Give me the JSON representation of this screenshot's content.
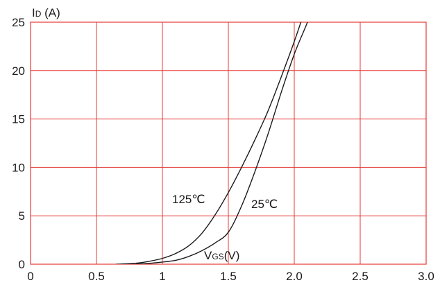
{
  "chart_data": {
    "type": "line",
    "title": "",
    "xlabel": "VGS(V)",
    "ylabel": "ID (A)",
    "xlim": [
      0,
      3.0
    ],
    "ylim": [
      0,
      25
    ],
    "xticks": [
      "0",
      "0.5",
      "1",
      "1.5",
      "2.0",
      "2.5",
      "3.0"
    ],
    "yticks": [
      "0",
      "5",
      "10",
      "15",
      "20",
      "25"
    ],
    "grid": true,
    "series": [
      {
        "name": "125℃",
        "x": [
          0.65,
          0.8,
          0.9,
          1.0,
          1.1,
          1.2,
          1.3,
          1.4,
          1.5,
          1.6,
          1.7,
          1.8,
          1.9,
          2.0,
          2.1
        ],
        "y": [
          0,
          0.1,
          0.3,
          0.6,
          1.1,
          1.9,
          3.2,
          5.1,
          7.4,
          10.0,
          12.8,
          15.8,
          19.3,
          23.0,
          27.0
        ]
      },
      {
        "name": "25℃",
        "x": [
          0.8,
          0.95,
          1.1,
          1.2,
          1.3,
          1.4,
          1.5,
          1.6,
          1.7,
          1.8,
          1.9,
          2.0,
          2.1,
          2.15
        ],
        "y": [
          0,
          0.15,
          0.4,
          0.8,
          1.4,
          2.2,
          3.3,
          6.0,
          9.5,
          13.4,
          17.7,
          21.7,
          25.0,
          27.0
        ]
      }
    ],
    "series_colors": [
      "#1a1a1a",
      "#1a1a1a"
    ],
    "grid_color": "#e53935"
  },
  "labels": {
    "ylabel_main": "I",
    "ylabel_sub": "D",
    "ylabel_rest": " (A)",
    "xlabel_main": "V",
    "xlabel_sub": "GS",
    "xlabel_rest": "(V)",
    "curve_125": "125℃",
    "curve_25": "25℃"
  }
}
